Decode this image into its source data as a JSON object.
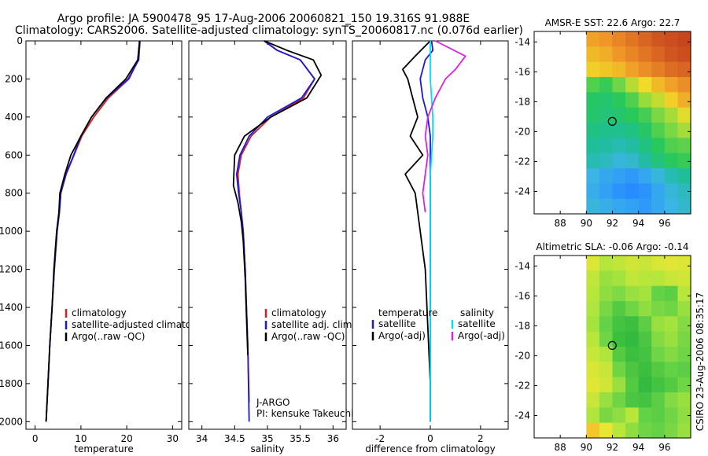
{
  "header": {
    "line1": "Argo profile: JA 5900478_95 17-Aug-2006 20060821_150 19.316S 91.988E",
    "line2": "Climatology: CARS2006. Satellite-adjusted climatology: synTS_20060817.nc (0.076d earlier)"
  },
  "colors": {
    "climatology": "#d42020",
    "satellite": "#1a1ad6",
    "argo": "#000000",
    "sat_diff": "#00e0f0",
    "argo_diff": "#e020e0"
  },
  "chart_data": [
    {
      "type": "line",
      "name": "temperature-profile",
      "xlabel": "temperature",
      "ylim": [
        2040,
        0
      ],
      "xlim": [
        -2,
        32
      ],
      "xticks": [
        "0",
        "10",
        "20",
        "30"
      ],
      "yticks": [
        "0",
        "200",
        "400",
        "600",
        "800",
        "1000",
        "1200",
        "1400",
        "1600",
        "1800",
        "2000"
      ],
      "legend": [
        "climatology",
        "satellite-adjusted climatology",
        "Argo(..raw -QC)"
      ],
      "series": [
        {
          "name": "climatology",
          "color": "#d42020",
          "x": [
            22.8,
            22.5,
            20.5,
            16,
            12.8,
            10.2,
            8.5,
            6.8,
            5.6,
            5.3,
            4.8,
            4.2,
            3.7,
            3.2,
            2.8,
            2.4
          ],
          "y": [
            0,
            100,
            200,
            300,
            400,
            500,
            600,
            700,
            800,
            900,
            1000,
            1200,
            1400,
            1600,
            1800,
            2000
          ]
        },
        {
          "name": "satellite",
          "color": "#1a1ad6",
          "x": [
            22.9,
            22.6,
            20.3,
            15.6,
            12.3,
            10,
            8.4,
            6.7,
            5.6,
            5.3,
            4.8,
            4.2,
            3.7,
            3.2,
            2.8,
            2.4
          ],
          "y": [
            0,
            100,
            200,
            300,
            400,
            500,
            600,
            700,
            800,
            900,
            1000,
            1200,
            1400,
            1600,
            1800,
            2000
          ]
        },
        {
          "name": "Argo",
          "color": "#000000",
          "x": [
            22.8,
            22.4,
            19.8,
            15.5,
            12.3,
            10,
            7.8,
            6.5,
            5.4,
            5.2,
            4.7,
            4.1,
            3.7,
            3.2,
            2.8,
            2.4
          ],
          "y": [
            0,
            100,
            200,
            300,
            400,
            500,
            600,
            700,
            800,
            900,
            1000,
            1200,
            1400,
            1600,
            1800,
            2000
          ]
        }
      ]
    },
    {
      "type": "line",
      "name": "salinity-profile",
      "xlabel": "salinity",
      "ylim": [
        2040,
        0
      ],
      "xlim": [
        33.8,
        36.2
      ],
      "xticks": [
        "34",
        "34.5",
        "35",
        "35.5",
        "36"
      ],
      "legend": [
        "climatology",
        "satellite adj. clim.",
        "Argo(..raw -QC)"
      ],
      "annotation": [
        "J-ARGO",
        "PI: kensuke Takeuchi"
      ],
      "series": [
        {
          "name": "climatology",
          "color": "#d42020",
          "x": [
            34.95,
            35.15,
            35.5,
            35.72,
            35.55,
            35.05,
            34.75,
            34.6,
            34.55,
            34.57,
            34.6,
            34.63,
            34.66,
            34.68,
            34.7,
            34.72
          ],
          "y": [
            0,
            50,
            100,
            200,
            300,
            400,
            500,
            600,
            700,
            800,
            900,
            1000,
            1200,
            1400,
            1600,
            1900
          ]
        },
        {
          "name": "satellite",
          "color": "#1a1ad6",
          "x": [
            34.95,
            35.15,
            35.5,
            35.72,
            35.52,
            35.0,
            34.72,
            34.58,
            34.53,
            34.56,
            34.6,
            34.63,
            34.66,
            34.68,
            34.7,
            34.72
          ],
          "y": [
            0,
            50,
            100,
            200,
            300,
            400,
            500,
            600,
            700,
            800,
            900,
            1000,
            1200,
            1400,
            1600,
            2000
          ]
        },
        {
          "name": "Argo",
          "color": "#000000",
          "x": [
            34.95,
            35.3,
            35.7,
            35.82,
            35.6,
            35.05,
            34.65,
            34.5,
            34.48,
            34.55,
            34.6,
            34.63,
            34.66,
            34.68,
            34.7
          ],
          "y": [
            0,
            50,
            100,
            180,
            300,
            400,
            500,
            600,
            760,
            850,
            950,
            1050,
            1250,
            1450,
            1650
          ]
        }
      ]
    },
    {
      "type": "line",
      "name": "difference-profile",
      "xlabel": "difference from climatology",
      "ylim": [
        2040,
        0
      ],
      "xlim": [
        -3.1,
        3.1
      ],
      "xticks": [
        "-2",
        "0",
        "2"
      ],
      "legend_temperature": {
        "title": "temperature",
        "items": [
          "satellite",
          "Argo(-adj)"
        ]
      },
      "legend_salinity": {
        "title": "salinity",
        "items": [
          "satellite",
          "Argo(-adj)"
        ]
      },
      "series": [
        {
          "name": "temperature satellite",
          "color": "#1a1ad6",
          "x": [
            0.05,
            0.1,
            -0.2,
            -0.4,
            -0.3,
            -0.1,
            0,
            0,
            0,
            0,
            0
          ],
          "y": [
            0,
            50,
            100,
            200,
            300,
            400,
            500,
            700,
            1000,
            1500,
            2000
          ]
        },
        {
          "name": "temperature Argo(-adj)",
          "color": "#000000",
          "x": [
            0,
            -0.6,
            -1.1,
            -0.9,
            -0.7,
            -0.5,
            -0.8,
            -0.3,
            -1.0,
            -0.6,
            -0.4,
            -0.2,
            -0.1,
            0,
            0
          ],
          "y": [
            0,
            80,
            150,
            200,
            300,
            400,
            500,
            600,
            700,
            800,
            1000,
            1200,
            1500,
            1800,
            2000
          ]
        },
        {
          "name": "salinity satellite",
          "color": "#00e0f0",
          "x": [
            0,
            0,
            0,
            0.1,
            0.1,
            0,
            0,
            0,
            0
          ],
          "y": [
            0,
            100,
            200,
            400,
            500,
            700,
            1000,
            1500,
            2000
          ]
        },
        {
          "name": "salinity Argo(-adj)",
          "color": "#e020e0",
          "x": [
            0.2,
            1.4,
            1.0,
            0.6,
            0.2,
            -0.1,
            -0.2,
            -0.1,
            -0.2,
            -0.3,
            -0.2
          ],
          "y": [
            0,
            80,
            150,
            200,
            300,
            400,
            500,
            600,
            700,
            800,
            900
          ]
        }
      ]
    },
    {
      "type": "heatmap",
      "name": "sst-map",
      "title": "AMSR-E SST: 22.6 Argo: 22.7",
      "xlim": [
        86,
        98
      ],
      "ylim": [
        -25.5,
        -13.3
      ],
      "xticks": [
        "88",
        "90",
        "92",
        "94",
        "96"
      ],
      "yticks": [
        "-14",
        "-16",
        "-18",
        "-20",
        "-22",
        "-24"
      ],
      "data_lon_start": 90,
      "marker": {
        "lon": 91.988,
        "lat": -19.316
      },
      "values": [
        [
          22.9,
          23.0,
          23.2,
          23.4,
          23.6,
          23.8,
          23.9,
          24.0
        ],
        [
          22.7,
          22.8,
          23.0,
          23.2,
          23.4,
          23.6,
          23.8,
          23.9
        ],
        [
          22.5,
          22.6,
          22.7,
          22.9,
          23.1,
          23.3,
          23.5,
          23.6
        ],
        [
          21.3,
          21.1,
          21.5,
          22.0,
          22.4,
          22.7,
          22.9,
          23.1
        ],
        [
          20.9,
          20.8,
          21.0,
          21.3,
          21.8,
          22.1,
          22.5,
          22.8
        ],
        [
          20.8,
          20.7,
          20.8,
          21.0,
          21.2,
          21.6,
          21.9,
          22.3
        ],
        [
          20.6,
          20.5,
          20.5,
          20.6,
          20.9,
          21.3,
          21.6,
          21.9
        ],
        [
          20.4,
          20.3,
          20.2,
          20.3,
          20.6,
          21.0,
          21.3,
          21.4
        ],
        [
          20.2,
          20.1,
          19.9,
          20.0,
          20.3,
          20.7,
          21.0,
          21.1
        ],
        [
          19.8,
          19.6,
          19.5,
          19.4,
          19.6,
          19.9,
          20.2,
          20.4
        ],
        [
          19.7,
          19.5,
          19.3,
          19.2,
          19.3,
          19.6,
          19.9,
          20.1
        ],
        [
          19.9,
          19.7,
          19.6,
          19.5,
          19.4,
          19.6,
          19.8,
          20.0
        ]
      ]
    },
    {
      "type": "heatmap",
      "name": "sla-map",
      "title": "Altimetric SLA: -0.06 Argo: -0.14",
      "xlim": [
        86,
        98
      ],
      "ylim": [
        -25.5,
        -13.3
      ],
      "xticks": [
        "88",
        "90",
        "92",
        "94",
        "96"
      ],
      "yticks": [
        "-14",
        "-16",
        "-18",
        "-20",
        "-22",
        "-24"
      ],
      "data_lon_start": 90,
      "marker": {
        "lon": 91.988,
        "lat": -19.316
      },
      "values": [
        [
          0.45,
          0.35,
          0.38,
          0.42,
          0.4,
          0.44,
          0.46,
          0.45
        ],
        [
          0.38,
          0.3,
          0.32,
          0.38,
          0.36,
          0.35,
          0.4,
          0.42
        ],
        [
          0.36,
          0.28,
          0.25,
          0.3,
          0.32,
          0.2,
          0.18,
          0.36
        ],
        [
          0.34,
          0.24,
          0.16,
          0.22,
          0.28,
          0.24,
          0.22,
          0.3
        ],
        [
          0.32,
          0.2,
          0.12,
          0.1,
          0.18,
          0.3,
          0.32,
          0.26
        ],
        [
          0.36,
          0.22,
          0.1,
          0.08,
          0.14,
          0.26,
          0.3,
          0.24
        ],
        [
          0.4,
          0.34,
          0.16,
          0.1,
          0.12,
          0.22,
          0.26,
          0.22
        ],
        [
          0.44,
          0.4,
          0.22,
          0.14,
          0.1,
          0.16,
          0.2,
          0.18
        ],
        [
          0.46,
          0.42,
          0.3,
          0.16,
          0.08,
          0.12,
          0.16,
          0.22
        ],
        [
          0.4,
          0.3,
          0.22,
          0.14,
          0.12,
          0.18,
          0.26,
          0.3
        ],
        [
          0.34,
          0.24,
          0.28,
          0.36,
          0.2,
          0.18,
          0.22,
          0.28
        ],
        [
          0.62,
          0.48,
          0.36,
          0.28,
          0.22,
          0.2,
          0.24,
          0.3
        ]
      ]
    }
  ],
  "footer": {
    "credit": "CSIRO 23-Aug-2006 08:35:17"
  }
}
